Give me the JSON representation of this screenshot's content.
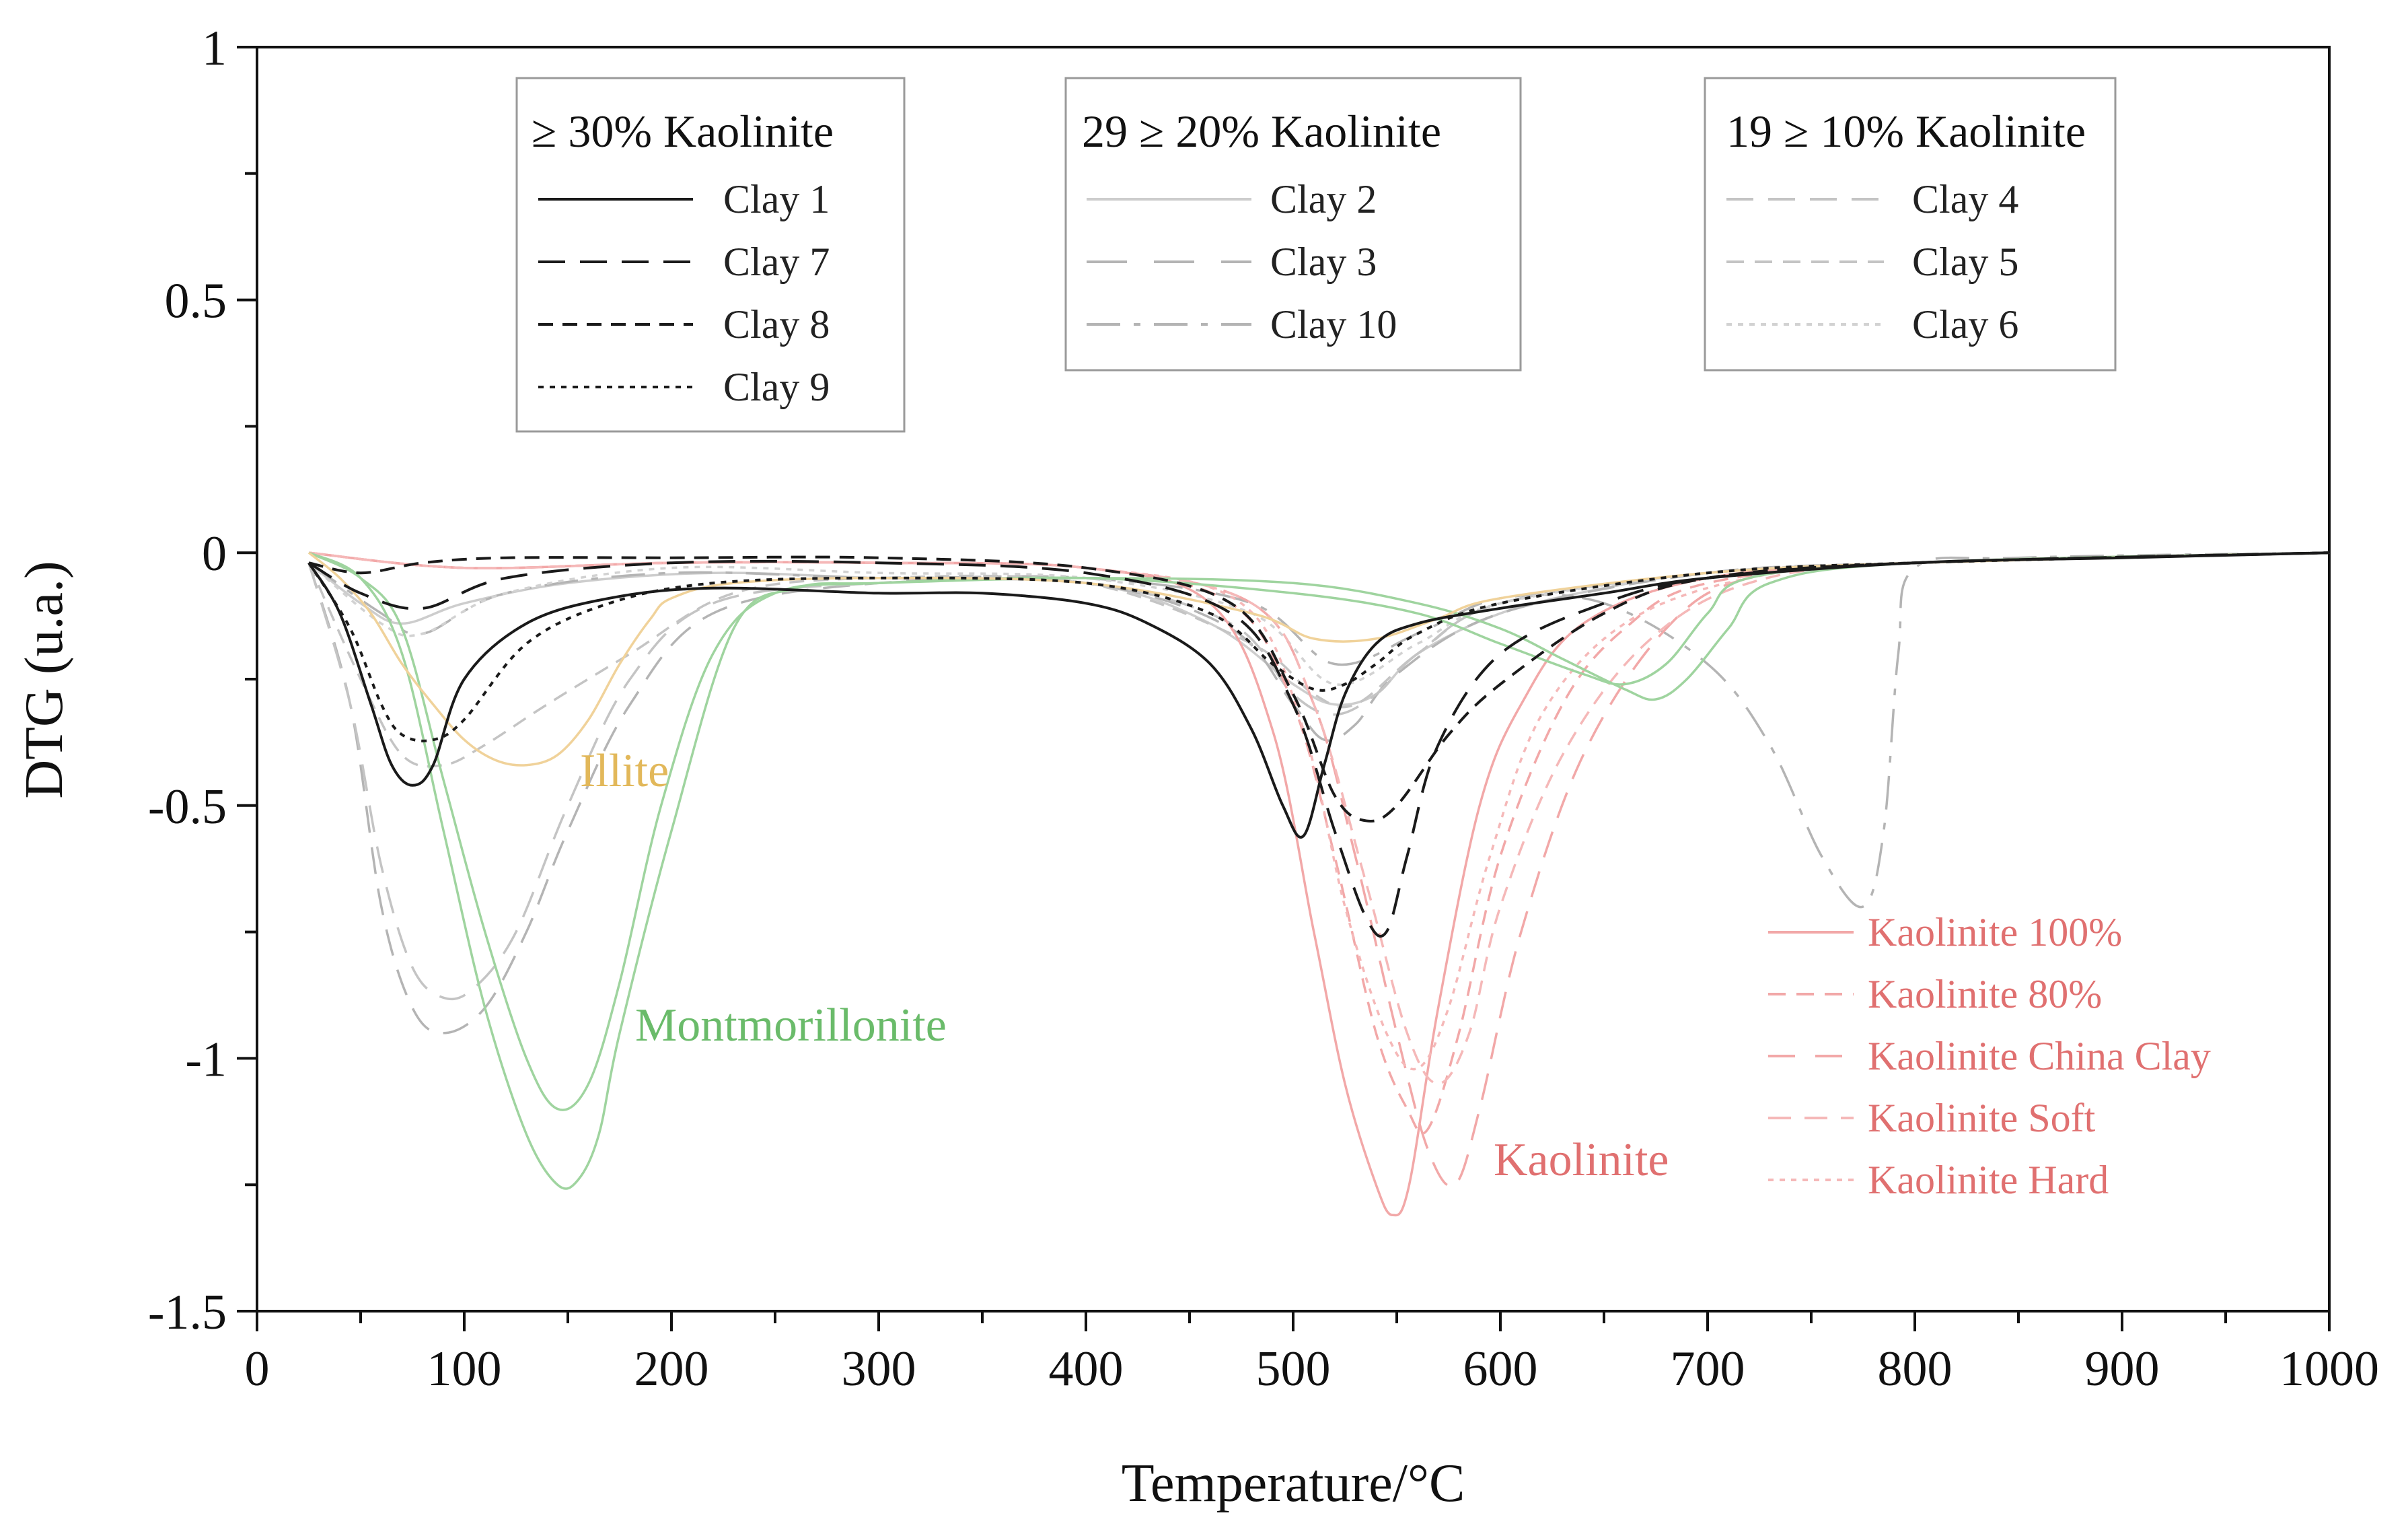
{
  "chart_data": {
    "type": "line",
    "xlabel": "Temperature/°C",
    "ylabel": "DTG (u.a.)",
    "xlim": [
      0,
      1000
    ],
    "ylim": [
      -1.5,
      1
    ],
    "x_ticks": [
      "0",
      "100",
      "200",
      "300",
      "400",
      "500",
      "600",
      "700",
      "800",
      "900",
      "1000"
    ],
    "y_ticks": [
      "1",
      "0.5",
      "0",
      "-0.5",
      "-1",
      "-1.5"
    ],
    "grid": false,
    "colors": {
      "clay_dark": "#1a1a1a",
      "clay_gray": "#b4b4b4",
      "clay_lightgray": "#cdcdcd",
      "kaolinite": "#f2a8a8",
      "kaolinite_text": "#e07070",
      "montmorillonite": "#9fd49f",
      "montmorillonite_text": "#6abb6a",
      "illite": "#f0d29a",
      "illite_text": "#e2b85a"
    },
    "legend_groups": [
      {
        "title": "≥ 30% Kaolinite",
        "placement": "top-left",
        "entries": [
          "Clay 1",
          "Clay 7",
          "Clay 8",
          "Clay 9"
        ]
      },
      {
        "title": "29 ≥ 20% Kaolinite",
        "placement": "top-center",
        "entries": [
          "Clay 2",
          "Clay 3",
          "Clay 10"
        ]
      },
      {
        "title": "19 ≥ 10% Kaolinite",
        "placement": "top-right",
        "entries": [
          "Clay 4",
          "Clay 5",
          "Clay 6"
        ]
      }
    ],
    "reference_legend": {
      "placement": "bottom-right",
      "entries": [
        "Kaolinite 100%",
        "Kaolinite 80%",
        "Kaolinite China Clay",
        "Kaolinite Soft",
        "Kaolinite Hard"
      ]
    },
    "annotations": [
      "Illite",
      "Montmorillonite",
      "Kaolinite"
    ],
    "series": [
      {
        "name": "Clay 1",
        "group": 0,
        "style": "solid",
        "color": "#1a1a1a",
        "x": [
          25,
          40,
          55,
          65,
          75,
          85,
          100,
          130,
          170,
          220,
          300,
          350,
          400,
          430,
          460,
          480,
          495,
          505,
          515,
          525,
          540,
          560,
          600,
          650,
          700,
          800,
          900,
          1000
        ],
        "y": [
          -0.02,
          -0.12,
          -0.3,
          -0.42,
          -0.46,
          -0.42,
          -0.25,
          -0.14,
          -0.09,
          -0.07,
          -0.08,
          -0.08,
          -0.1,
          -0.14,
          -0.22,
          -0.35,
          -0.5,
          -0.56,
          -0.42,
          -0.28,
          -0.18,
          -0.14,
          -0.11,
          -0.08,
          -0.05,
          -0.02,
          -0.01,
          0
        ]
      },
      {
        "name": "Clay 7",
        "group": 0,
        "style": "longdash",
        "color": "#1a1a1a",
        "x": [
          25,
          50,
          80,
          120,
          200,
          300,
          400,
          470,
          500,
          520,
          535,
          545,
          555,
          570,
          600,
          650,
          700,
          800,
          1000
        ],
        "y": [
          -0.02,
          -0.08,
          -0.11,
          -0.05,
          -0.02,
          -0.02,
          -0.04,
          -0.12,
          -0.3,
          -0.55,
          -0.72,
          -0.75,
          -0.6,
          -0.38,
          -0.2,
          -0.1,
          -0.05,
          -0.02,
          0
        ]
      },
      {
        "name": "Clay 8",
        "group": 0,
        "style": "dash",
        "color": "#1a1a1a",
        "x": [
          25,
          50,
          80,
          120,
          200,
          300,
          400,
          470,
          500,
          520,
          535,
          550,
          575,
          600,
          650,
          700,
          800,
          1000
        ],
        "y": [
          -0.02,
          -0.04,
          -0.02,
          -0.01,
          -0.01,
          -0.01,
          -0.03,
          -0.1,
          -0.28,
          -0.48,
          -0.53,
          -0.5,
          -0.36,
          -0.26,
          -0.12,
          -0.05,
          -0.02,
          0
        ]
      },
      {
        "name": "Clay 9",
        "group": 0,
        "style": "dot",
        "color": "#1a1a1a",
        "x": [
          25,
          45,
          60,
          70,
          85,
          100,
          130,
          170,
          220,
          300,
          400,
          460,
          490,
          510,
          525,
          540,
          560,
          600,
          700,
          800,
          1000
        ],
        "y": [
          -0.02,
          -0.15,
          -0.3,
          -0.36,
          -0.37,
          -0.33,
          -0.18,
          -0.1,
          -0.06,
          -0.05,
          -0.06,
          -0.12,
          -0.22,
          -0.27,
          -0.26,
          -0.22,
          -0.16,
          -0.1,
          -0.04,
          -0.02,
          0
        ]
      },
      {
        "name": "Clay 2",
        "group": 1,
        "style": "solid",
        "color": "#cdcdcd",
        "x": [
          25,
          50,
          70,
          100,
          150,
          220,
          300,
          400,
          460,
          500,
          520,
          540,
          560,
          600,
          650,
          700,
          800,
          1000
        ],
        "y": [
          -0.02,
          -0.1,
          -0.14,
          -0.1,
          -0.06,
          -0.04,
          -0.05,
          -0.06,
          -0.14,
          -0.26,
          -0.3,
          -0.28,
          -0.2,
          -0.12,
          -0.07,
          -0.04,
          -0.02,
          0
        ]
      },
      {
        "name": "Clay 3",
        "group": 1,
        "style": "longdash",
        "color": "#b4b4b4",
        "x": [
          25,
          45,
          60,
          75,
          90,
          110,
          130,
          150,
          180,
          220,
          300,
          400,
          470,
          500,
          515,
          530,
          550,
          600,
          700,
          800,
          1000
        ],
        "y": [
          -0.02,
          -0.3,
          -0.7,
          -0.9,
          -0.95,
          -0.9,
          -0.75,
          -0.55,
          -0.3,
          -0.12,
          -0.06,
          -0.06,
          -0.15,
          -0.3,
          -0.37,
          -0.34,
          -0.24,
          -0.12,
          -0.04,
          -0.02,
          0
        ]
      },
      {
        "name": "Clay 10",
        "group": 1,
        "style": "dashdot",
        "color": "#b4b4b4",
        "x": [
          25,
          60,
          80,
          120,
          200,
          300,
          400,
          480,
          520,
          560,
          600,
          650,
          700,
          730,
          755,
          775,
          785,
          792,
          800,
          850,
          1000
        ],
        "y": [
          -0.02,
          -0.12,
          -0.16,
          -0.08,
          -0.04,
          -0.05,
          -0.05,
          -0.1,
          -0.22,
          -0.16,
          -0.09,
          -0.1,
          -0.22,
          -0.38,
          -0.6,
          -0.7,
          -0.55,
          -0.2,
          -0.03,
          -0.01,
          0
        ]
      },
      {
        "name": "Clay 4",
        "group": 2,
        "style": "longdash",
        "color": "#c4c4c4",
        "x": [
          25,
          45,
          60,
          75,
          90,
          105,
          125,
          150,
          180,
          220,
          300,
          400,
          470,
          500,
          520,
          540,
          560,
          600,
          700,
          800,
          1000
        ],
        "y": [
          -0.02,
          -0.3,
          -0.62,
          -0.82,
          -0.88,
          -0.86,
          -0.75,
          -0.5,
          -0.25,
          -0.1,
          -0.06,
          -0.06,
          -0.14,
          -0.28,
          -0.32,
          -0.28,
          -0.2,
          -0.1,
          -0.04,
          -0.02,
          0
        ]
      },
      {
        "name": "Clay 5",
        "group": 2,
        "style": "dash",
        "color": "#c4c4c4",
        "x": [
          25,
          50,
          70,
          90,
          110,
          140,
          180,
          230,
          300,
          400,
          480,
          510,
          530,
          560,
          600,
          700,
          800,
          1000
        ],
        "y": [
          -0.02,
          -0.25,
          -0.4,
          -0.42,
          -0.38,
          -0.3,
          -0.2,
          -0.08,
          -0.05,
          -0.06,
          -0.18,
          -0.28,
          -0.3,
          -0.2,
          -0.1,
          -0.04,
          -0.02,
          0
        ]
      },
      {
        "name": "Clay 6",
        "group": 2,
        "style": "dot",
        "color": "#d2d2d2",
        "x": [
          25,
          60,
          80,
          120,
          200,
          300,
          400,
          480,
          520,
          560,
          600,
          700,
          800,
          1000
        ],
        "y": [
          -0.02,
          -0.14,
          -0.16,
          -0.08,
          -0.03,
          -0.04,
          -0.05,
          -0.12,
          -0.26,
          -0.18,
          -0.1,
          -0.04,
          -0.02,
          0
        ]
      },
      {
        "name": "Kaolinite 100%",
        "group": 3,
        "style": "solid",
        "color": "#f2a8a8",
        "x": [
          25,
          100,
          200,
          300,
          400,
          460,
          490,
          510,
          525,
          540,
          548,
          556,
          570,
          590,
          610,
          640,
          700,
          800,
          1000
        ],
        "y": [
          0,
          -0.03,
          -0.02,
          -0.02,
          -0.03,
          -0.1,
          -0.35,
          -0.75,
          -1.05,
          -1.25,
          -1.31,
          -1.25,
          -0.9,
          -0.5,
          -0.3,
          -0.14,
          -0.05,
          -0.02,
          0
        ]
      },
      {
        "name": "Kaolinite 80%",
        "group": 3,
        "style": "dash",
        "color": "#f2a8a8",
        "x": [
          25,
          100,
          200,
          300,
          400,
          470,
          500,
          520,
          540,
          555,
          565,
          580,
          600,
          630,
          660,
          700,
          800,
          1000
        ],
        "y": [
          0,
          -0.03,
          -0.02,
          -0.02,
          -0.03,
          -0.1,
          -0.3,
          -0.6,
          -0.95,
          -1.1,
          -1.14,
          -0.95,
          -0.6,
          -0.3,
          -0.15,
          -0.06,
          -0.02,
          0
        ]
      },
      {
        "name": "Kaolinite China Clay",
        "group": 3,
        "style": "longdash",
        "color": "#f2a8a8",
        "x": [
          25,
          100,
          200,
          300,
          400,
          480,
          510,
          530,
          550,
          565,
          578,
          590,
          610,
          640,
          680,
          720,
          800,
          1000
        ],
        "y": [
          0,
          -0.03,
          -0.02,
          -0.02,
          -0.03,
          -0.1,
          -0.3,
          -0.6,
          -0.95,
          -1.18,
          -1.25,
          -1.1,
          -0.75,
          -0.4,
          -0.15,
          -0.05,
          -0.02,
          0
        ]
      },
      {
        "name": "Kaolinite Soft",
        "group": 3,
        "style": "dash",
        "color": "#f5b8b8",
        "x": [
          25,
          100,
          200,
          300,
          400,
          480,
          510,
          535,
          555,
          570,
          585,
          600,
          630,
          670,
          720,
          800,
          1000
        ],
        "y": [
          0,
          -0.03,
          -0.02,
          -0.02,
          -0.03,
          -0.1,
          -0.3,
          -0.65,
          -0.95,
          -1.05,
          -0.95,
          -0.7,
          -0.4,
          -0.18,
          -0.06,
          -0.02,
          0
        ]
      },
      {
        "name": "Kaolinite Hard",
        "group": 3,
        "style": "dot",
        "color": "#f5b8b8",
        "x": [
          25,
          100,
          200,
          300,
          400,
          475,
          505,
          525,
          545,
          560,
          575,
          595,
          620,
          660,
          720,
          800,
          1000
        ],
        "y": [
          0,
          -0.03,
          -0.02,
          -0.02,
          -0.03,
          -0.1,
          -0.35,
          -0.7,
          -0.95,
          -1.02,
          -0.9,
          -0.6,
          -0.32,
          -0.14,
          -0.05,
          -0.02,
          0
        ]
      },
      {
        "name": "Montmorillonite A",
        "group": 4,
        "style": "solid",
        "color": "#9fd49f",
        "x": [
          25,
          50,
          70,
          90,
          110,
          130,
          145,
          155,
          165,
          175,
          200,
          230,
          260,
          300,
          400,
          500,
          560,
          600,
          630,
          660,
          675,
          690,
          710,
          730,
          800,
          1000
        ],
        "y": [
          0,
          -0.05,
          -0.2,
          -0.55,
          -0.9,
          -1.15,
          -1.25,
          -1.24,
          -1.15,
          -0.95,
          -0.55,
          -0.15,
          -0.07,
          -0.06,
          -0.05,
          -0.06,
          -0.1,
          -0.15,
          -0.21,
          -0.27,
          -0.29,
          -0.25,
          -0.15,
          -0.06,
          -0.02,
          0
        ]
      },
      {
        "name": "Montmorillonite B",
        "group": 4,
        "style": "solid",
        "color": "#9fd49f",
        "x": [
          25,
          50,
          70,
          90,
          110,
          130,
          145,
          160,
          175,
          195,
          220,
          250,
          300,
          400,
          500,
          560,
          600,
          640,
          660,
          680,
          700,
          720,
          800,
          1000
        ],
        "y": [
          0,
          -0.05,
          -0.15,
          -0.45,
          -0.75,
          -1.0,
          -1.1,
          -1.05,
          -0.85,
          -0.5,
          -0.2,
          -0.08,
          -0.06,
          -0.05,
          -0.08,
          -0.12,
          -0.18,
          -0.24,
          -0.26,
          -0.22,
          -0.12,
          -0.05,
          -0.02,
          0
        ]
      },
      {
        "name": "Illite",
        "group": 5,
        "style": "solid",
        "color": "#f0d29a",
        "x": [
          25,
          40,
          55,
          70,
          85,
          100,
          115,
          130,
          145,
          160,
          175,
          190,
          200,
          230,
          300,
          400,
          480,
          510,
          540,
          570,
          600,
          700,
          800,
          1000
        ],
        "y": [
          0,
          -0.05,
          -0.12,
          -0.22,
          -0.3,
          -0.37,
          -0.41,
          -0.42,
          -0.4,
          -0.33,
          -0.22,
          -0.13,
          -0.09,
          -0.06,
          -0.05,
          -0.06,
          -0.12,
          -0.17,
          -0.17,
          -0.13,
          -0.09,
          -0.04,
          -0.02,
          0
        ]
      }
    ]
  }
}
